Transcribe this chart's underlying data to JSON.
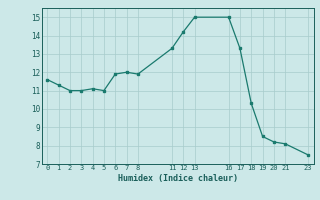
{
  "x": [
    0,
    1,
    2,
    3,
    4,
    5,
    6,
    7,
    8,
    11,
    12,
    13,
    16,
    17,
    18,
    19,
    20,
    21,
    23
  ],
  "y": [
    11.6,
    11.3,
    11.0,
    11.0,
    11.1,
    11.0,
    11.9,
    12.0,
    11.9,
    13.3,
    14.2,
    15.0,
    15.0,
    13.3,
    10.3,
    8.5,
    8.2,
    8.1,
    7.5
  ],
  "ylim": [
    7,
    15.5
  ],
  "xlim": [
    -0.5,
    23.5
  ],
  "yticks": [
    7,
    8,
    9,
    10,
    11,
    12,
    13,
    14,
    15
  ],
  "xticks": [
    0,
    1,
    2,
    3,
    4,
    5,
    6,
    7,
    8,
    11,
    12,
    13,
    16,
    17,
    18,
    19,
    20,
    21,
    23
  ],
  "xtick_labels": [
    "0",
    "1",
    "2",
    "3",
    "4",
    "5",
    "6",
    "7",
    "8",
    "11",
    "12",
    "13",
    "16",
    "17",
    "18",
    "19",
    "20",
    "21",
    "23"
  ],
  "xlabel": "Humidex (Indice chaleur)",
  "line_color": "#1a7a6e",
  "bg_color": "#cce8e8",
  "grid_color": "#a8cccc",
  "font_color": "#1a5f5a"
}
